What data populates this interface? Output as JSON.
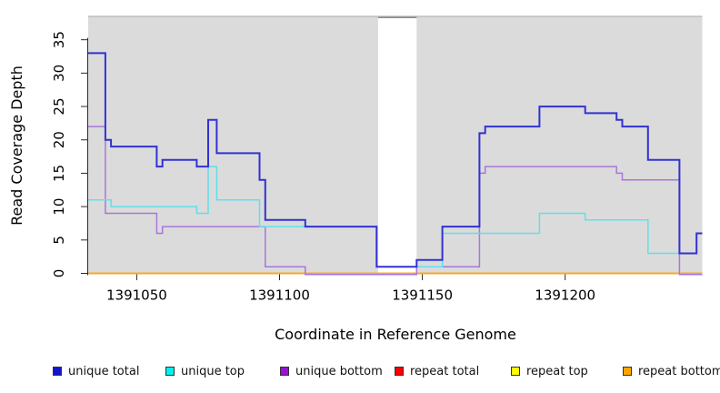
{
  "chart_data": {
    "type": "line",
    "subtype": "step-coverage",
    "title": "",
    "xlabel": "Coordinate in Reference Genome",
    "ylabel": "Read Coverage Depth",
    "xlim": [
      1391033,
      1391248
    ],
    "ylim": [
      0,
      38.5
    ],
    "x_ticks": [
      1391050,
      1391100,
      1391150,
      1391200
    ],
    "x_tick_labels": [
      "1391050",
      "1391100",
      "1391150",
      "1391200"
    ],
    "y_ticks": [
      0,
      5,
      10,
      15,
      20,
      25,
      30,
      35
    ],
    "y_tick_labels": [
      "0",
      "5",
      "10",
      "15",
      "20",
      "25",
      "30",
      "35"
    ],
    "grid": false,
    "panel_bg": "#DBDBDB",
    "panel_top_line_color": "#B3B3B3",
    "gap_region": {
      "start": 1391134.5,
      "end": 1391148,
      "fill": "#FFFFFF",
      "top_border": "#8A8A8A"
    },
    "series": [
      {
        "name": "repeat total",
        "color": "#D02020",
        "width": 1.5,
        "zero_offset": 0,
        "points": [
          [
            1391033,
            0
          ],
          [
            1391248,
            0
          ]
        ]
      },
      {
        "name": "repeat top",
        "color": "#FFFF33",
        "width": 1.5,
        "zero_offset": 0,
        "points": [
          [
            1391033,
            0
          ],
          [
            1391248,
            0
          ]
        ]
      },
      {
        "name": "repeat bottom",
        "color": "#FFA41E",
        "width": 1.8,
        "zero_offset": 0,
        "points": [
          [
            1391033,
            0
          ],
          [
            1391248,
            0
          ]
        ]
      },
      {
        "name": "unique bottom",
        "color": "#A877DA",
        "width": 1.5,
        "zero_offset": 1.3,
        "points": [
          [
            1391033,
            22
          ],
          [
            1391039,
            9
          ],
          [
            1391057,
            6
          ],
          [
            1391059,
            7
          ],
          [
            1391095,
            1
          ],
          [
            1391109,
            0
          ],
          [
            1391148,
            1
          ],
          [
            1391170,
            15
          ],
          [
            1391172,
            16
          ],
          [
            1391218,
            15
          ],
          [
            1391220,
            14
          ],
          [
            1391240,
            0
          ],
          [
            1391248,
            0
          ]
        ]
      },
      {
        "name": "unique top",
        "color": "#5FE0E8",
        "width": 1.5,
        "zero_offset": 0,
        "points": [
          [
            1391033,
            11
          ],
          [
            1391041,
            10
          ],
          [
            1391071,
            9
          ],
          [
            1391075,
            16
          ],
          [
            1391078,
            11
          ],
          [
            1391093,
            7
          ],
          [
            1391134,
            1
          ],
          [
            1391157,
            6
          ],
          [
            1391191,
            9
          ],
          [
            1391207,
            8
          ],
          [
            1391229,
            3
          ],
          [
            1391246,
            6
          ],
          [
            1391248,
            6
          ]
        ]
      },
      {
        "name": "unique total",
        "color": "#3232D0",
        "width": 2,
        "zero_offset": 0,
        "points": [
          [
            1391033,
            33
          ],
          [
            1391039,
            20
          ],
          [
            1391041,
            19
          ],
          [
            1391057,
            16
          ],
          [
            1391059,
            17
          ],
          [
            1391071,
            16
          ],
          [
            1391075,
            23
          ],
          [
            1391078,
            18
          ],
          [
            1391093,
            14
          ],
          [
            1391095,
            8
          ],
          [
            1391109,
            7
          ],
          [
            1391134,
            1
          ],
          [
            1391148,
            2
          ],
          [
            1391157,
            7
          ],
          [
            1391170,
            21
          ],
          [
            1391172,
            22
          ],
          [
            1391191,
            25
          ],
          [
            1391207,
            24
          ],
          [
            1391218,
            23
          ],
          [
            1391220,
            22
          ],
          [
            1391229,
            17
          ],
          [
            1391240,
            3
          ],
          [
            1391246,
            6
          ],
          [
            1391248,
            6
          ]
        ]
      }
    ],
    "legend": [
      {
        "label": "unique total",
        "swatch": "#1414CC"
      },
      {
        "label": "unique top",
        "swatch": "#00F0F0"
      },
      {
        "label": "unique bottom",
        "swatch": "#9912D4"
      },
      {
        "label": "repeat total",
        "swatch": "#FF0000"
      },
      {
        "label": "repeat top",
        "swatch": "#FFFF00"
      },
      {
        "label": "repeat bottom",
        "swatch": "#FFA500"
      }
    ],
    "legend_position": "bottom"
  }
}
